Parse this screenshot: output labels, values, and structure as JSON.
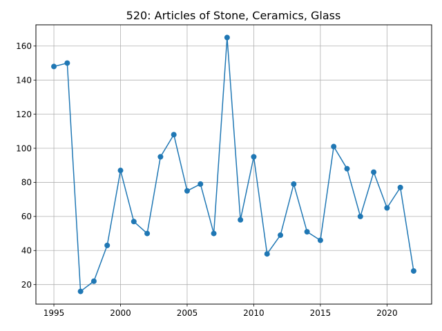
{
  "chart_data": {
    "type": "line",
    "title": "520: Articles of Stone, Ceramics, Glass",
    "xlabel": "",
    "ylabel": "",
    "x": [
      1995,
      1996,
      1997,
      1998,
      1999,
      2000,
      2001,
      2002,
      2003,
      2004,
      2005,
      2006,
      2007,
      2008,
      2009,
      2010,
      2011,
      2012,
      2013,
      2014,
      2015,
      2016,
      2017,
      2018,
      2019,
      2020,
      2021,
      2022
    ],
    "series": [
      {
        "values": [
          148,
          150,
          16,
          22,
          43,
          87,
          57,
          50,
          95,
          108,
          75,
          79,
          50,
          165,
          58,
          95,
          38,
          49,
          79,
          51,
          46,
          101,
          88,
          60,
          86,
          65,
          77,
          28
        ],
        "color": "#1f77b4",
        "marker": "circle"
      }
    ],
    "xticks": [
      "1995",
      "2000",
      "2005",
      "2010",
      "2015",
      "2020"
    ],
    "yticks": [
      "20",
      "40",
      "60",
      "80",
      "100",
      "120",
      "140",
      "160"
    ],
    "xlim": [
      1993.65,
      2023.35
    ],
    "ylim": [
      8.55,
      172.45
    ],
    "grid": true,
    "grid_color": "#b0b0b0",
    "axis_color": "#000000"
  }
}
